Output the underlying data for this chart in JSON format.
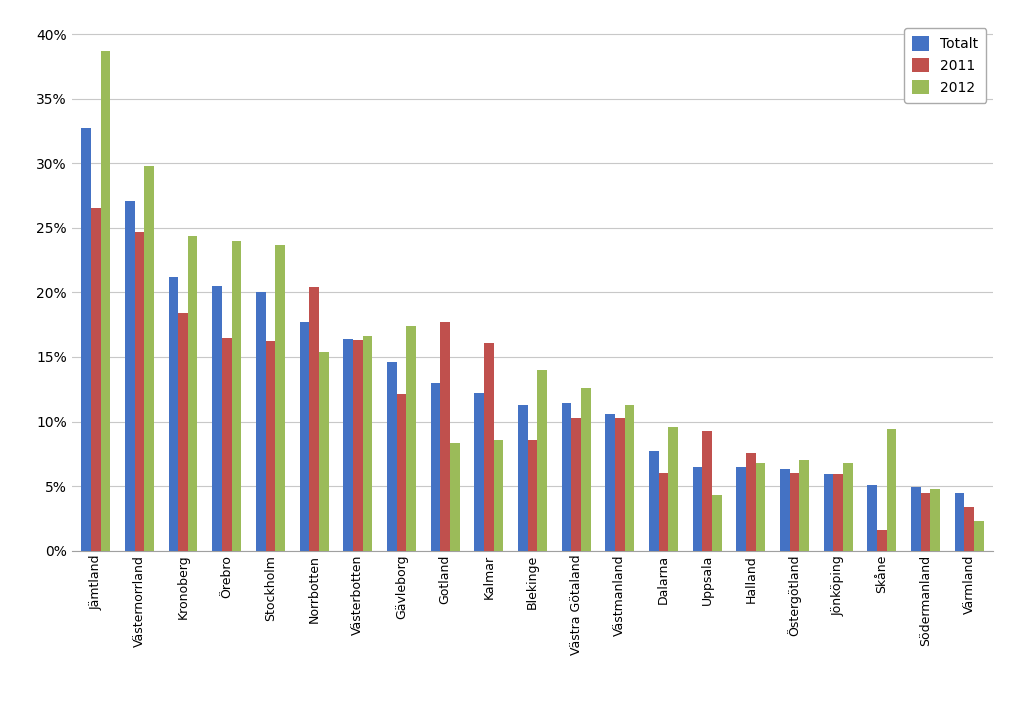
{
  "categories": [
    "Jämtland",
    "Västernorrland",
    "Kronoberg",
    "Örebro",
    "Stockholm",
    "Norrbotten",
    "Västerbotten",
    "Gävleborg",
    "Gotland",
    "Kalmar",
    "Blekinge",
    "Västra Götaland",
    "Västmanland",
    "Dalarna",
    "Uppsala",
    "Halland",
    "Östergötland",
    "Jönköping",
    "Skåne",
    "Södermanland",
    "Värmland"
  ],
  "totalt": [
    0.327,
    0.271,
    0.212,
    0.205,
    0.2,
    0.177,
    0.164,
    0.146,
    0.13,
    0.122,
    0.113,
    0.114,
    0.106,
    0.077,
    0.065,
    0.065,
    0.063,
    0.059,
    0.051,
    0.049,
    0.045
  ],
  "y2011": [
    0.265,
    0.247,
    0.184,
    0.165,
    0.162,
    0.204,
    0.163,
    0.121,
    0.177,
    0.161,
    0.086,
    0.103,
    0.103,
    0.06,
    0.093,
    0.076,
    0.06,
    0.059,
    0.016,
    0.045,
    0.034
  ],
  "y2012": [
    0.387,
    0.298,
    0.244,
    0.24,
    0.237,
    0.154,
    0.166,
    0.174,
    0.083,
    0.086,
    0.14,
    0.126,
    0.113,
    0.096,
    0.043,
    0.068,
    0.07,
    0.068,
    0.094,
    0.048,
    0.023
  ],
  "color_totalt": "#4472c4",
  "color_2011": "#c0504d",
  "color_2012": "#9bbb59",
  "legend_labels": [
    "Totalt",
    "2011",
    "2012"
  ],
  "ylim": [
    0,
    0.41
  ],
  "yticks": [
    0.0,
    0.05,
    0.1,
    0.15,
    0.2,
    0.25,
    0.3,
    0.35,
    0.4
  ],
  "background_color": "#ffffff",
  "grid_color": "#c8c8c8"
}
